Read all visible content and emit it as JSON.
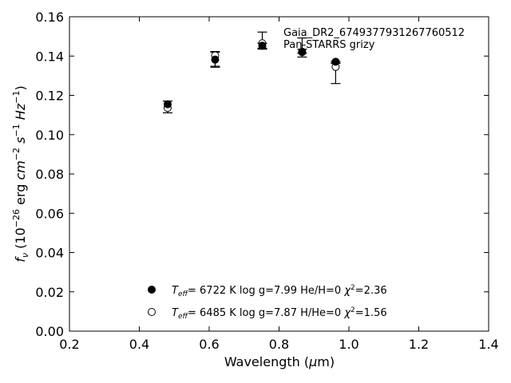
{
  "chart_data": {
    "type": "scatter",
    "title": "",
    "xlabel": "Wavelength (μm)",
    "ylabel": "f_ν (10^-26 erg cm^-2 s^-1 Hz^-1)",
    "xlim": [
      0.2,
      1.4
    ],
    "ylim": [
      0.0,
      0.16
    ],
    "xticks": [
      "0.2",
      "0.4",
      "0.6",
      "0.8",
      "1.0",
      "1.2",
      "1.4"
    ],
    "yticks": [
      "0.00",
      "0.02",
      "0.04",
      "0.06",
      "0.08",
      "0.10",
      "0.12",
      "0.14",
      "0.16"
    ],
    "grid": false,
    "annotation": {
      "object": "Gaia_DR2_6749377931267760512",
      "survey": "Pan-STARRS grizy"
    },
    "observed": {
      "x": [
        0.481,
        0.617,
        0.752,
        0.866,
        0.962
      ],
      "y": [
        0.1141,
        0.1383,
        0.145,
        0.1415,
        0.1368
      ],
      "yerr": [
        0.003,
        0.004,
        0.0015,
        0.002,
        0.0005
      ]
    },
    "series": [
      {
        "name": "T_eff=  6722 K  log g=7.99  He/H=0  χ²=2.36",
        "marker": "filled-circle",
        "x": [
          0.481,
          0.617,
          0.752,
          0.866,
          0.962
        ],
        "y": [
          0.1155,
          0.1382,
          0.1453,
          0.142,
          0.1371
        ]
      },
      {
        "name": "T_eff=  6485 K  log g=7.87  H/He=0  χ²=1.56",
        "marker": "open-circle",
        "x": [
          0.481,
          0.617,
          0.752,
          0.866,
          0.962
        ],
        "y": [
          0.1136,
          0.1403,
          0.1465,
          0.1422,
          0.1345
        ]
      }
    ],
    "model_errors": [
      {
        "x": 0.617,
        "ylow": 0.1348,
        "yhigh": 0.142
      },
      {
        "x": 0.752,
        "ylow": 0.144,
        "yhigh": 0.1522
      },
      {
        "x": 0.866,
        "ylow": 0.1415,
        "yhigh": 0.1492
      },
      {
        "x": 0.962,
        "ylow": 0.126,
        "yhigh": 0.1365
      }
    ],
    "legend": {
      "placement": "lower-center",
      "entries": [
        {
          "teff": "6722 K",
          "logg": "log g=7.99",
          "comp": "He/H=0",
          "chi": "=2.36"
        },
        {
          "teff": "6485 K",
          "logg": "log g=7.87",
          "comp": "H/He=0",
          "chi": "=1.56"
        }
      ]
    }
  }
}
